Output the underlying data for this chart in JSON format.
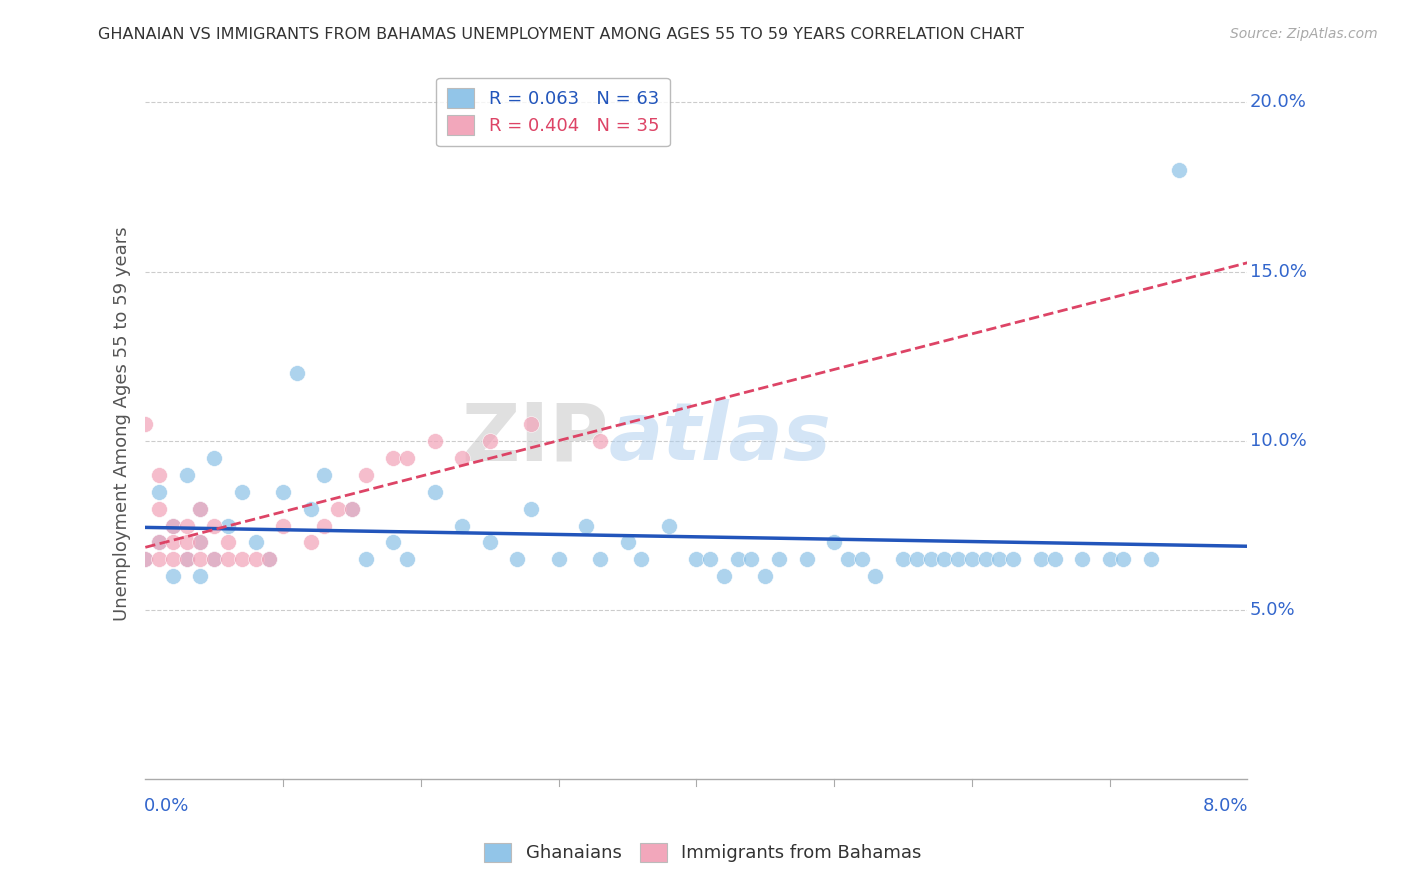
{
  "title": "GHANAIAN VS IMMIGRANTS FROM BAHAMAS UNEMPLOYMENT AMONG AGES 55 TO 59 YEARS CORRELATION CHART",
  "source": "Source: ZipAtlas.com",
  "ylabel": "Unemployment Among Ages 55 to 59 years",
  "legend_blue_r": "R = 0.063",
  "legend_blue_n": "N = 63",
  "legend_pink_r": "R = 0.404",
  "legend_pink_n": "N = 35",
  "watermark_zip": "ZIP",
  "watermark_atlas": "atlas",
  "blue_color": "#92c5e8",
  "pink_color": "#f2a7bb",
  "blue_line_color": "#2255bb",
  "pink_line_color": "#dd4466",
  "xlim": [
    0.0,
    0.08
  ],
  "ylim": [
    0.0,
    0.21
  ],
  "yticks": [
    0.05,
    0.1,
    0.15,
    0.2
  ],
  "ytick_labels": [
    "5.0%",
    "10.0%",
    "15.0%",
    "20.0%"
  ],
  "ghanaian_x": [
    0.0,
    0.001,
    0.001,
    0.002,
    0.002,
    0.003,
    0.003,
    0.004,
    0.004,
    0.004,
    0.005,
    0.005,
    0.006,
    0.007,
    0.008,
    0.009,
    0.01,
    0.011,
    0.012,
    0.013,
    0.015,
    0.016,
    0.018,
    0.019,
    0.021,
    0.023,
    0.025,
    0.027,
    0.028,
    0.03,
    0.032,
    0.033,
    0.035,
    0.036,
    0.038,
    0.04,
    0.041,
    0.042,
    0.043,
    0.044,
    0.045,
    0.046,
    0.048,
    0.05,
    0.051,
    0.052,
    0.053,
    0.055,
    0.056,
    0.057,
    0.058,
    0.059,
    0.06,
    0.061,
    0.062,
    0.063,
    0.065,
    0.066,
    0.068,
    0.07,
    0.071,
    0.073,
    0.075
  ],
  "ghanaian_y": [
    0.065,
    0.085,
    0.07,
    0.075,
    0.06,
    0.09,
    0.065,
    0.08,
    0.07,
    0.06,
    0.095,
    0.065,
    0.075,
    0.085,
    0.07,
    0.065,
    0.085,
    0.12,
    0.08,
    0.09,
    0.08,
    0.065,
    0.07,
    0.065,
    0.085,
    0.075,
    0.07,
    0.065,
    0.08,
    0.065,
    0.075,
    0.065,
    0.07,
    0.065,
    0.075,
    0.065,
    0.065,
    0.06,
    0.065,
    0.065,
    0.06,
    0.065,
    0.065,
    0.07,
    0.065,
    0.065,
    0.06,
    0.065,
    0.065,
    0.065,
    0.065,
    0.065,
    0.065,
    0.065,
    0.065,
    0.065,
    0.065,
    0.065,
    0.065,
    0.065,
    0.065,
    0.065,
    0.18
  ],
  "bahamas_x": [
    0.0,
    0.0,
    0.001,
    0.001,
    0.001,
    0.001,
    0.002,
    0.002,
    0.002,
    0.003,
    0.003,
    0.003,
    0.004,
    0.004,
    0.004,
    0.005,
    0.005,
    0.006,
    0.006,
    0.007,
    0.008,
    0.009,
    0.01,
    0.012,
    0.013,
    0.014,
    0.015,
    0.016,
    0.018,
    0.019,
    0.021,
    0.023,
    0.025,
    0.028,
    0.033
  ],
  "bahamas_y": [
    0.065,
    0.105,
    0.065,
    0.07,
    0.08,
    0.09,
    0.065,
    0.07,
    0.075,
    0.065,
    0.07,
    0.075,
    0.065,
    0.07,
    0.08,
    0.065,
    0.075,
    0.065,
    0.07,
    0.065,
    0.065,
    0.065,
    0.075,
    0.07,
    0.075,
    0.08,
    0.08,
    0.09,
    0.095,
    0.095,
    0.1,
    0.095,
    0.1,
    0.105,
    0.1
  ]
}
